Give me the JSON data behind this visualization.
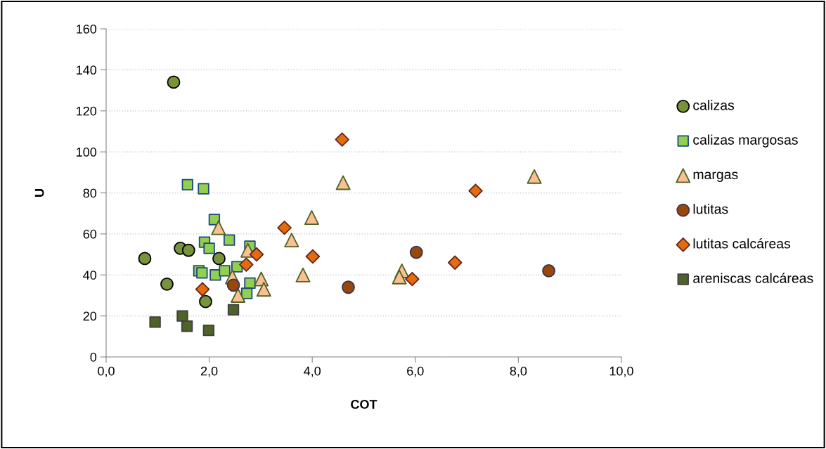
{
  "chart_data": {
    "type": "scatter",
    "xlabel": "COT",
    "ylabel": "U",
    "xlim": [
      0,
      10
    ],
    "xticks": [
      {
        "value": 0,
        "label": "0,0"
      },
      {
        "value": 2,
        "label": "2,0"
      },
      {
        "value": 4,
        "label": "4,0"
      },
      {
        "value": 6,
        "label": "6,0"
      },
      {
        "value": 8,
        "label": "8,0"
      },
      {
        "value": 10,
        "label": "10,0"
      }
    ],
    "ylim": [
      0,
      160
    ],
    "yticks": [
      0,
      20,
      40,
      60,
      80,
      100,
      120,
      140,
      160
    ],
    "grid": "y",
    "legend": "right",
    "series": [
      {
        "name": "calizas",
        "color": "#77933c",
        "marker": "circle",
        "x": [
          1.31,
          0.75,
          1.44,
          1.6,
          2.19,
          1.18,
          1.93
        ],
        "values": [
          134,
          48,
          53,
          52,
          48,
          35.5,
          27
        ]
      },
      {
        "name": "calizas margosas",
        "color": "#92d050",
        "marker": "square",
        "x": [
          1.58,
          1.89,
          2.1,
          2.39,
          1.91,
          2.0,
          2.79,
          1.8,
          1.86,
          2.12,
          2.3,
          2.54,
          2.79,
          2.73
        ],
        "values": [
          84,
          82,
          67,
          57,
          56,
          53,
          54,
          42,
          41,
          40,
          42,
          44,
          36,
          31
        ]
      },
      {
        "name": "margas",
        "color": "#fac090",
        "marker": "triangle",
        "x": [
          2.18,
          2.75,
          2.45,
          2.56,
          3.01,
          3.06,
          3.6,
          4.6,
          8.31,
          3.99,
          3.82,
          5.74,
          5.69
        ],
        "values": [
          63,
          52,
          39,
          30,
          38,
          33,
          57,
          85,
          88,
          68,
          40,
          42,
          39
        ]
      },
      {
        "name": "lutitas",
        "color": "#984807",
        "marker": "circle",
        "x": [
          6.02,
          4.7,
          8.59,
          2.47
        ],
        "values": [
          51,
          34,
          42,
          35
        ]
      },
      {
        "name": "lutitas calcáreas",
        "color": "#e46c0a",
        "marker": "diamond",
        "x": [
          4.58,
          7.17,
          4.01,
          6.77,
          5.94,
          3.46,
          2.92,
          2.72,
          1.87
        ],
        "values": [
          106,
          81,
          49,
          46,
          38,
          63,
          50,
          45,
          33
        ]
      },
      {
        "name": "areniscas calcáreas",
        "color": "#4f6228",
        "marker": "square",
        "x": [
          0.95,
          1.48,
          1.57,
          1.99,
          2.47
        ],
        "values": [
          17,
          20,
          15,
          13,
          23
        ]
      }
    ]
  }
}
